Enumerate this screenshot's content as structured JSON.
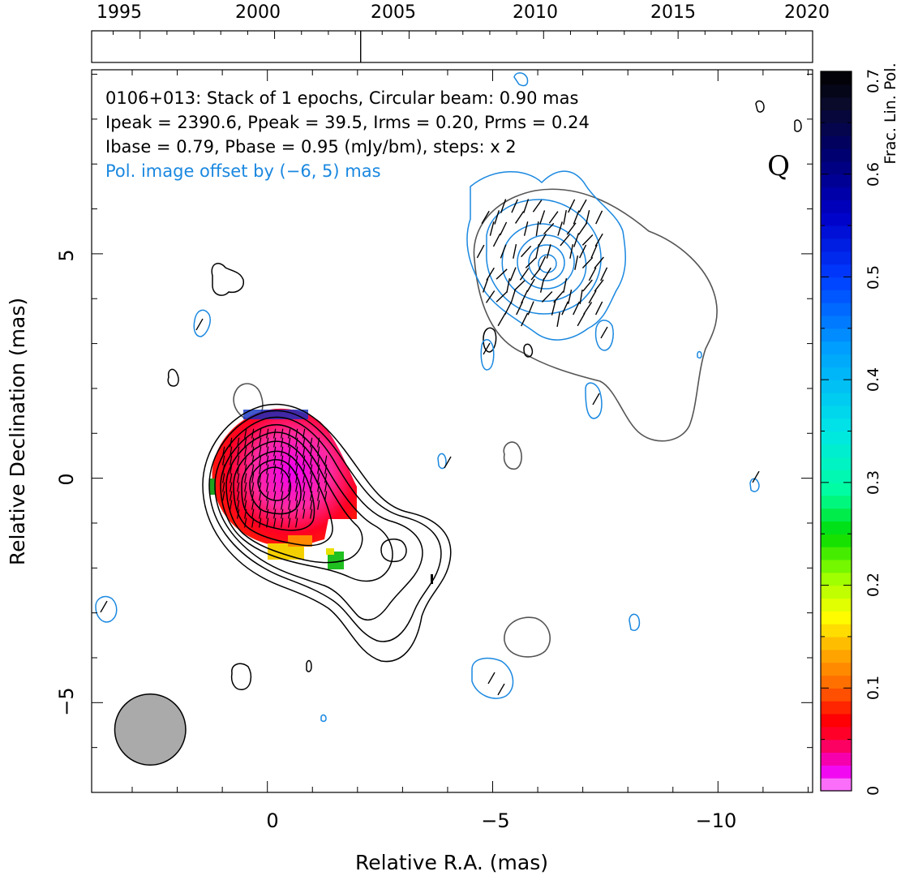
{
  "timeline": {
    "tick_labels": [
      "1995",
      "2000",
      "2005",
      "2010",
      "2015",
      "2020"
    ],
    "tick_years": [
      1995,
      2000,
      2005,
      2010,
      2015,
      2020
    ],
    "year_range": [
      1993.2,
      2020
    ],
    "epoch_markers": [
      2003.2
    ]
  },
  "legend_text": {
    "line1": "0106+013: Stack of 1 epochs, Circular beam: 0.90 mas",
    "line2": "Ipeak = 2390.6, Ppeak = 39.5, Irms = 0.20, Prms = 0.24",
    "line3": "Ibase = 0.79, Pbase = 0.95 (mJy/bm), steps: x 2",
    "line4": "Pol. image offset by (−6, 5) mas",
    "quality_letter": "Q"
  },
  "colors": {
    "pol_contour": "#1a88e0",
    "total_contour": "#000000",
    "grey_contour": "#555555",
    "beam_fill": "#aaaaaa",
    "offset_text": "#1a88e0"
  },
  "colorbar": {
    "label": "Frac. Lin. Pol.",
    "tick_labels": [
      "0",
      "0.1",
      "0.2",
      "0.3",
      "0.4",
      "0.5",
      "0.6",
      "0.7"
    ],
    "range": [
      0,
      0.7
    ]
  },
  "chart_data": {
    "type": "heatmap",
    "xlabel": "Relative R.A. (mas)",
    "ylabel": "Relative Declination (mas)",
    "xlim": [
      3.9,
      -12.1
    ],
    "ylim": [
      -7.0,
      9.1
    ],
    "x_ticks": [
      0,
      -5,
      -10
    ],
    "x_tick_labels": [
      "0",
      "−5",
      "−10"
    ],
    "y_ticks": [
      -5,
      0,
      5
    ],
    "y_tick_labels": [
      "−5",
      "0",
      "5"
    ],
    "beam_diameter_mas": 0.9,
    "beam_center": [
      2.6,
      -5.6
    ],
    "total_intensity_core": {
      "center": [
        0,
        0
      ],
      "contours": 9
    },
    "pol_component": {
      "center": [
        -6.1,
        4.8
      ],
      "contours": 5
    },
    "legend": "none"
  }
}
